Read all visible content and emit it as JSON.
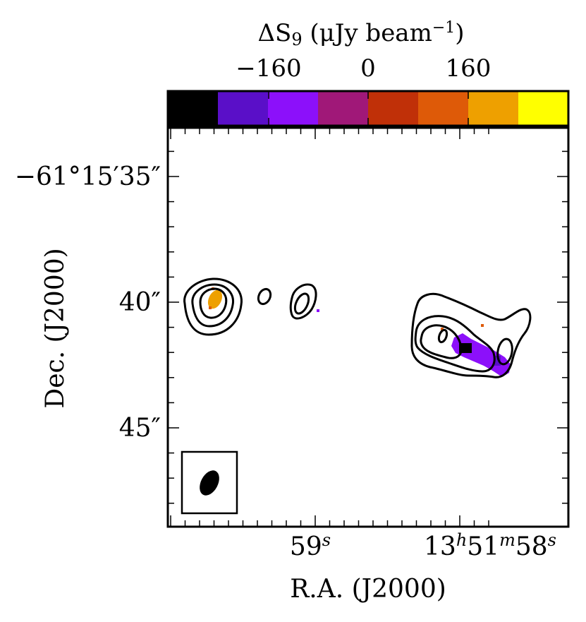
{
  "chart_data": {
    "type": "heatmap",
    "title": "",
    "colorbar": {
      "label_prefix": "ΔS",
      "label_sub": "9",
      "label_unit_open": " (μJy beam",
      "label_unit_sup": "−1",
      "label_unit_close": ")",
      "ticks": [
        -160,
        0,
        160
      ],
      "tick_labels": [
        "−160",
        "0",
        "160"
      ],
      "range": [
        -320,
        320
      ],
      "bins": 8,
      "colors": [
        "#000000",
        "#5a0fc8",
        "#8c10fa",
        "#a01878",
        "#c03008",
        "#de5a08",
        "#eea000",
        "#ffff00"
      ]
    },
    "xlabel": "R.A. (J2000)",
    "ylabel": "Dec. (J2000)",
    "ylim_arcsec_offset": [
      -9,
      2
    ],
    "xlim_seconds": [
      58.55,
      59.6
    ],
    "x_ticks": [
      {
        "value": 59.0,
        "main": "59",
        "sup": "s"
      },
      {
        "value": 58.0,
        "main": "13",
        "sup": "h",
        "main2": "51",
        "sup2": "m",
        "main3": "58",
        "sup3": "s"
      }
    ],
    "y_ticks": [
      {
        "offset": 0,
        "label": "−61°15′35″"
      },
      {
        "offset": -5,
        "label": "40″"
      },
      {
        "offset": -10,
        "label": "45″"
      }
    ],
    "contour_color": "#000000",
    "beam_shown": true
  }
}
